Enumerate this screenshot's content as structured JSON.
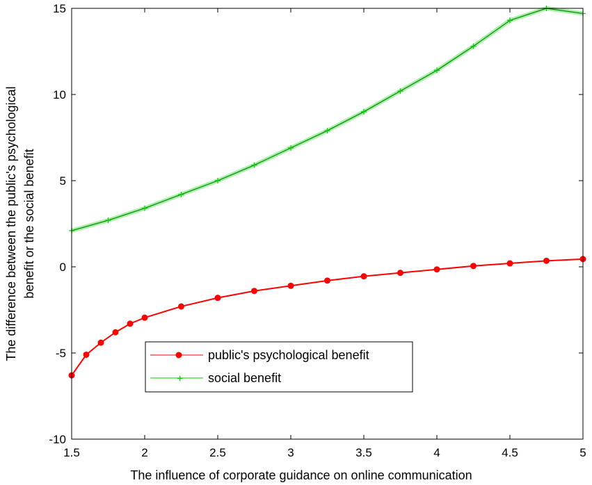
{
  "chart_data": {
    "type": "line",
    "xlabel": "The influence of corporate guidance on online communication",
    "ylabel_lines": [
      "The difference between the public's psychological",
      "benefit or the social benefit"
    ],
    "xlim": [
      1.5,
      5
    ],
    "ylim": [
      -10,
      15
    ],
    "x_ticks": [
      "1.5",
      "2",
      "2.5",
      "3",
      "3.5",
      "4",
      "4.5",
      "5"
    ],
    "y_ticks": [
      "15",
      "10",
      "5",
      "0",
      "-5",
      "-10"
    ],
    "grid": false,
    "legend_position": "lower-left",
    "series": [
      {
        "name": "public's psychological benefit",
        "color": "#ff0000",
        "marker": "filled-circle",
        "x": [
          1.5,
          1.6,
          1.7,
          1.8,
          1.9,
          2.0,
          2.25,
          2.5,
          2.75,
          3.0,
          3.25,
          3.5,
          3.75,
          4.0,
          4.25,
          4.5,
          4.75,
          5.0
        ],
        "y": [
          -6.3,
          -5.1,
          -4.4,
          -3.8,
          -3.3,
          -2.95,
          -2.3,
          -1.8,
          -1.4,
          -1.1,
          -0.8,
          -0.55,
          -0.35,
          -0.15,
          0.05,
          0.2,
          0.35,
          0.45
        ]
      },
      {
        "name": "social benefit",
        "color": "#00cc00",
        "marker": "plus",
        "x": [
          1.5,
          1.75,
          2.0,
          2.25,
          2.5,
          2.75,
          3.0,
          3.25,
          3.5,
          3.75,
          4.0,
          4.25,
          4.5,
          4.75,
          5.0
        ],
        "y": [
          2.1,
          2.7,
          3.4,
          4.2,
          5.0,
          5.9,
          6.9,
          7.9,
          9.0,
          10.2,
          11.4,
          12.8,
          14.3,
          15.0,
          14.7
        ]
      }
    ]
  }
}
